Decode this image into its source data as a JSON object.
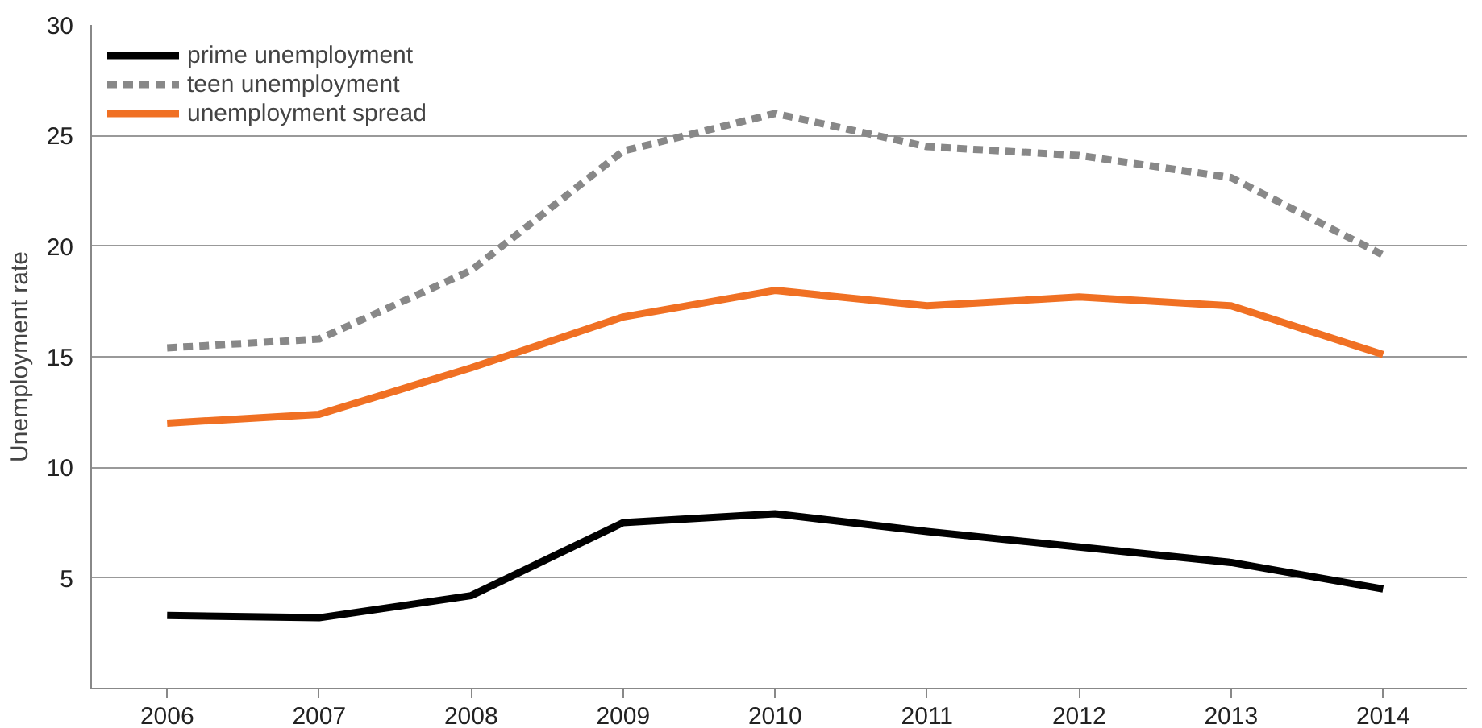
{
  "chart_data": {
    "type": "line",
    "ylabel": "Unemployment rate",
    "categories": [
      "2006",
      "2007",
      "2008",
      "2009",
      "2010",
      "2011",
      "2012",
      "2013",
      "2014"
    ],
    "series": [
      {
        "name": "prime unemployment",
        "color": "#000000",
        "values": [
          3.3,
          3.2,
          4.2,
          7.5,
          7.9,
          7.1,
          6.4,
          5.7,
          4.5
        ]
      },
      {
        "name": "teen unemployment",
        "color": "#888888",
        "line_style": "dashed",
        "values": [
          15.4,
          15.8,
          18.9,
          24.3,
          26.0,
          24.5,
          24.1,
          23.1,
          19.6
        ]
      },
      {
        "name": "unemployment spread",
        "color": "#f07023",
        "values": [
          12.0,
          12.4,
          14.5,
          16.8,
          18.0,
          17.3,
          17.7,
          17.3,
          15.1
        ]
      }
    ],
    "ylim": [
      0,
      30
    ],
    "yticks": [
      {
        "value": 0,
        "label": null
      },
      5,
      10,
      15,
      20,
      25,
      30
    ],
    "grid": "y",
    "legend": "top left",
    "line_style": "solid",
    "marker": "none"
  }
}
